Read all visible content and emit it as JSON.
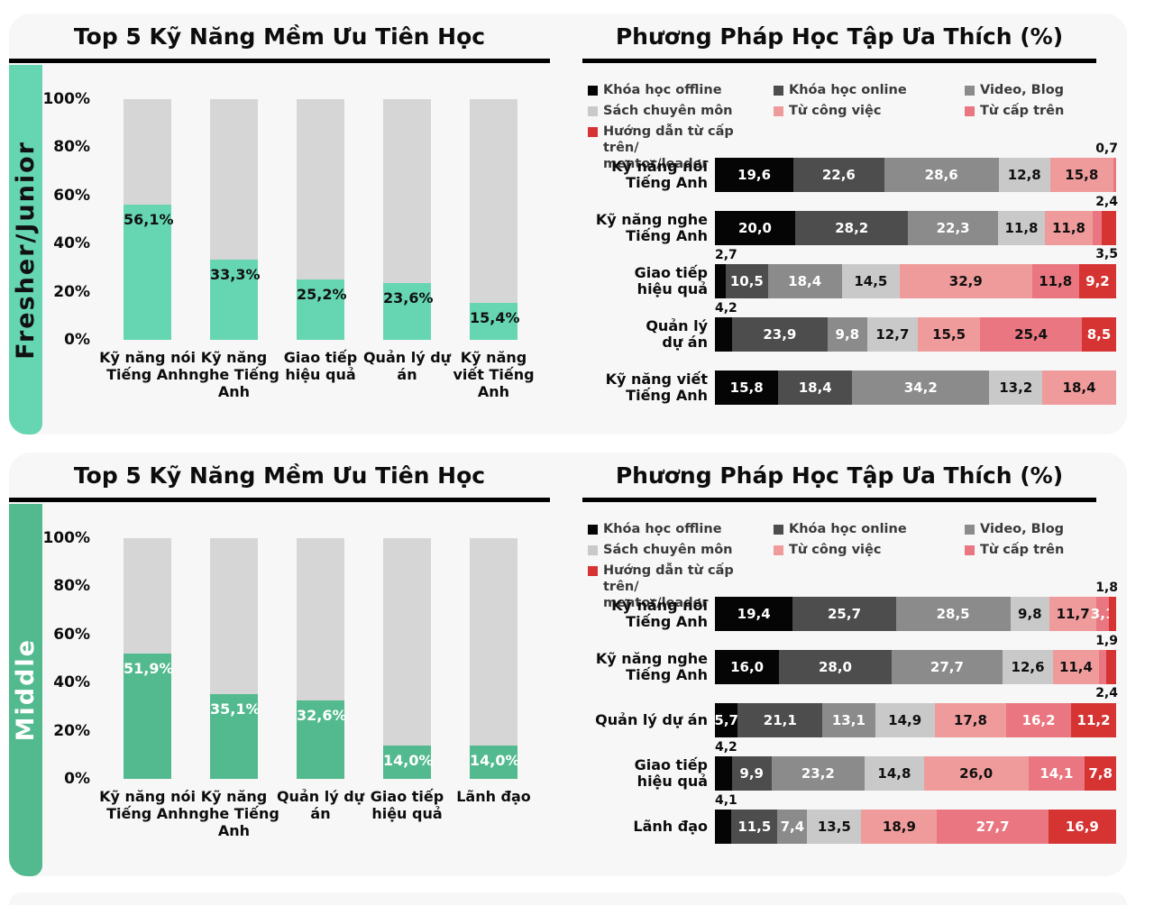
{
  "colors": {
    "teal": "#66d6b2",
    "green": "#52ba8e",
    "track_gray": "#d6d6d6",
    "card_bg": "#f7f7f8",
    "offline": "#050505",
    "online": "#4d4d4d",
    "video": "#8b8b8b",
    "sach": "#c9c9c9",
    "congviec": "#f09b9b",
    "captren": "#e97680",
    "huongdan": "#d63333"
  },
  "legend": {
    "columns": [
      [
        {
          "label": "Khóa học offline",
          "c": "offline"
        },
        {
          "label": "Sách chuyên môn",
          "c": "sach"
        },
        {
          "label": "Hướng dẫn từ cấp trên/\nmentor/leader",
          "c": "huongdan"
        }
      ],
      [
        {
          "label": "Khóa học online",
          "c": "online"
        },
        {
          "label": "Từ công việc",
          "c": "congviec"
        }
      ],
      [
        {
          "label": "Video, Blog",
          "c": "video"
        },
        {
          "label": "Từ cấp trên",
          "c": "captren"
        }
      ]
    ]
  },
  "panels": [
    {
      "side_label": "Fresher/Junior",
      "accent": "teal",
      "side_text": "#111111",
      "bar_label_color": "#111111",
      "left_title": "Top 5 Kỹ Năng Mềm Ưu Tiên Học",
      "right_title": "Phương Pháp Học Tập Ưa Thích (%)"
    },
    {
      "side_label": "Middle",
      "accent": "green",
      "side_text": "#ffffff",
      "bar_label_color": "#ffffff",
      "left_title": "Top 5 Kỹ Năng Mềm Ưu Tiên Học",
      "right_title": "Phương Pháp Học Tập Ưa Thích (%)"
    }
  ],
  "chart_data": [
    {
      "panel": "Fresher/Junior",
      "type": "bar",
      "title": "Top 5 Kỹ Năng Mềm Ưu Tiên Học",
      "ylabel": "%",
      "ylim": [
        0,
        100
      ],
      "yticks": [
        "100%",
        "80%",
        "60%",
        "40%",
        "20%",
        "0%"
      ],
      "categories": [
        "Kỹ năng nói Tiếng Anh",
        "Kỹ năng nghe Tiếng Anh",
        "Giao tiếp hiệu quả",
        "Quản lý dự án",
        "Kỹ năng viết Tiếng Anh"
      ],
      "values": [
        56.1,
        33.3,
        25.2,
        23.6,
        15.4
      ],
      "value_labels": [
        "56,1%",
        "33,3%",
        "25,2%",
        "23,6%",
        "15,4%"
      ]
    },
    {
      "panel": "Fresher/Junior",
      "type": "stacked-bar",
      "title": "Phương Pháp Học Tập Ưa Thích (%)",
      "xlim": [
        0,
        100
      ],
      "series_order": [
        "Khóa học offline",
        "Khóa học online",
        "Video, Blog",
        "Sách chuyên môn",
        "Từ công việc",
        "Từ cấp trên",
        "Hướng dẫn từ cấp trên/mentor/leader"
      ],
      "rows": [
        {
          "label": "Kỹ năng nói\nTiếng Anh",
          "segments": [
            {
              "v": 19.6,
              "t": "19,6",
              "c": "offline",
              "tc": "w",
              "pos": "in"
            },
            {
              "v": 22.6,
              "t": "22,6",
              "c": "online",
              "tc": "w",
              "pos": "in"
            },
            {
              "v": 28.6,
              "t": "28,6",
              "c": "video",
              "tc": "w",
              "pos": "in"
            },
            {
              "v": 12.8,
              "t": "12,8",
              "c": "sach",
              "tc": "b",
              "pos": "in"
            },
            {
              "v": 15.8,
              "t": "15,8",
              "c": "congviec",
              "tc": "b",
              "pos": "in"
            },
            {
              "v": 0.7,
              "t": "0,7",
              "c": "captren",
              "pos": "above"
            }
          ]
        },
        {
          "label": "Kỹ năng nghe\nTiếng Anh",
          "segments": [
            {
              "v": 20.0,
              "t": "20,0",
              "c": "offline",
              "tc": "w",
              "pos": "in"
            },
            {
              "v": 28.2,
              "t": "28,2",
              "c": "online",
              "tc": "w",
              "pos": "in"
            },
            {
              "v": 22.3,
              "t": "22,3",
              "c": "video",
              "tc": "w",
              "pos": "in"
            },
            {
              "v": 11.8,
              "t": "11,8",
              "c": "sach",
              "tc": "b",
              "pos": "in"
            },
            {
              "v": 11.8,
              "t": "11,8",
              "c": "congviec",
              "tc": "b",
              "pos": "in"
            },
            {
              "v": 2.4,
              "t": "2,4",
              "c": "captren",
              "pos": "above"
            },
            {
              "v": 3.5,
              "t": "3,5",
              "c": "huongdan",
              "pos": "below"
            }
          ]
        },
        {
          "label": "Giao tiếp\nhiệu quả",
          "segments": [
            {
              "v": 2.7,
              "t": "2,7",
              "c": "offline",
              "pos": "left-above"
            },
            {
              "v": 10.5,
              "t": "10,5",
              "c": "online",
              "tc": "w",
              "pos": "in"
            },
            {
              "v": 18.4,
              "t": "18,4",
              "c": "video",
              "tc": "w",
              "pos": "in"
            },
            {
              "v": 14.5,
              "t": "14,5",
              "c": "sach",
              "tc": "b",
              "pos": "in"
            },
            {
              "v": 32.9,
              "t": "32,9",
              "c": "congviec",
              "tc": "b",
              "pos": "in"
            },
            {
              "v": 11.8,
              "t": "11,8",
              "c": "captren",
              "tc": "b",
              "pos": "in"
            },
            {
              "v": 9.2,
              "t": "9,2",
              "c": "huongdan",
              "tc": "w",
              "pos": "in"
            }
          ]
        },
        {
          "label": "Quản lý\ndự án",
          "segments": [
            {
              "v": 4.2,
              "t": "4,2",
              "c": "offline",
              "pos": "left-above"
            },
            {
              "v": 23.9,
              "t": "23,9",
              "c": "online",
              "tc": "w",
              "pos": "in"
            },
            {
              "v": 9.8,
              "t": "9,8",
              "c": "video",
              "tc": "w",
              "pos": "in"
            },
            {
              "v": 12.7,
              "t": "12,7",
              "c": "sach",
              "tc": "b",
              "pos": "in"
            },
            {
              "v": 15.5,
              "t": "15,5",
              "c": "congviec",
              "tc": "b",
              "pos": "in"
            },
            {
              "v": 25.4,
              "t": "25,4",
              "c": "captren",
              "tc": "b",
              "pos": "in"
            },
            {
              "v": 8.5,
              "t": "8,5",
              "c": "huongdan",
              "tc": "w",
              "pos": "in"
            }
          ]
        },
        {
          "label": "Kỹ năng viết\nTiếng Anh",
          "segments": [
            {
              "v": 15.8,
              "t": "15,8",
              "c": "offline",
              "tc": "w",
              "pos": "in"
            },
            {
              "v": 18.4,
              "t": "18,4",
              "c": "online",
              "tc": "w",
              "pos": "in"
            },
            {
              "v": 34.2,
              "t": "34,2",
              "c": "video",
              "tc": "w",
              "pos": "in"
            },
            {
              "v": 13.2,
              "t": "13,2",
              "c": "sach",
              "tc": "b",
              "pos": "in"
            },
            {
              "v": 18.4,
              "t": "18,4",
              "c": "congviec",
              "tc": "b",
              "pos": "in"
            }
          ]
        }
      ]
    },
    {
      "panel": "Middle",
      "type": "bar",
      "title": "Top 5 Kỹ Năng Mềm Ưu Tiên Học",
      "ylabel": "%",
      "ylim": [
        0,
        100
      ],
      "yticks": [
        "100%",
        "80%",
        "60%",
        "40%",
        "20%",
        "0%"
      ],
      "categories": [
        "Kỹ năng nói Tiếng Anh",
        "Kỹ năng nghe Tiếng Anh",
        "Quản lý dự án",
        "Giao tiếp hiệu quả",
        "Lãnh đạo"
      ],
      "values": [
        51.9,
        35.1,
        32.6,
        14.0,
        14.0
      ],
      "value_labels": [
        "51,9%",
        "35,1%",
        "32,6%",
        "14,0%",
        "14,0%"
      ]
    },
    {
      "panel": "Middle",
      "type": "stacked-bar",
      "title": "Phương Pháp Học Tập Ưa Thích (%)",
      "xlim": [
        0,
        100
      ],
      "series_order": [
        "Khóa học offline",
        "Khóa học online",
        "Video, Blog",
        "Sách chuyên môn",
        "Từ công việc",
        "Từ cấp trên",
        "Hướng dẫn từ cấp trên/mentor/leader"
      ],
      "rows": [
        {
          "label": "Kỹ năng nói\nTiếng Anh",
          "segments": [
            {
              "v": 19.4,
              "t": "19,4",
              "c": "offline",
              "tc": "w",
              "pos": "in"
            },
            {
              "v": 25.7,
              "t": "25,7",
              "c": "online",
              "tc": "w",
              "pos": "in"
            },
            {
              "v": 28.5,
              "t": "28,5",
              "c": "video",
              "tc": "w",
              "pos": "in"
            },
            {
              "v": 9.8,
              "t": "9,8",
              "c": "sach",
              "tc": "b",
              "pos": "in"
            },
            {
              "v": 11.7,
              "t": "11,7",
              "c": "congviec",
              "tc": "b",
              "pos": "in"
            },
            {
              "v": 3.1,
              "t": "3,1",
              "c": "captren",
              "tc": "w",
              "pos": "in"
            },
            {
              "v": 1.8,
              "t": "1,8",
              "c": "huongdan",
              "pos": "above"
            }
          ]
        },
        {
          "label": "Kỹ năng nghe\nTiếng Anh",
          "segments": [
            {
              "v": 16.0,
              "t": "16,0",
              "c": "offline",
              "tc": "w",
              "pos": "in"
            },
            {
              "v": 28.0,
              "t": "28,0",
              "c": "online",
              "tc": "w",
              "pos": "in"
            },
            {
              "v": 27.7,
              "t": "27,7",
              "c": "video",
              "tc": "w",
              "pos": "in"
            },
            {
              "v": 12.6,
              "t": "12,6",
              "c": "sach",
              "tc": "b",
              "pos": "in"
            },
            {
              "v": 11.4,
              "t": "11,4",
              "c": "congviec",
              "tc": "b",
              "pos": "in"
            },
            {
              "v": 1.9,
              "t": "1,9",
              "c": "captren",
              "pos": "above"
            },
            {
              "v": 2.4,
              "t": "2,4",
              "c": "huongdan",
              "pos": "below"
            }
          ]
        },
        {
          "label": "Quản lý dự án",
          "segments": [
            {
              "v": 5.7,
              "t": "5,7",
              "c": "offline",
              "tc": "w",
              "pos": "in"
            },
            {
              "v": 21.1,
              "t": "21,1",
              "c": "online",
              "tc": "w",
              "pos": "in"
            },
            {
              "v": 13.1,
              "t": "13,1",
              "c": "video",
              "tc": "w",
              "pos": "in"
            },
            {
              "v": 14.9,
              "t": "14,9",
              "c": "sach",
              "tc": "b",
              "pos": "in"
            },
            {
              "v": 17.8,
              "t": "17,8",
              "c": "congviec",
              "tc": "b",
              "pos": "in"
            },
            {
              "v": 16.2,
              "t": "16,2",
              "c": "captren",
              "tc": "w",
              "pos": "in"
            },
            {
              "v": 11.2,
              "t": "11,2",
              "c": "huongdan",
              "tc": "w",
              "pos": "in"
            }
          ]
        },
        {
          "label": "Giao tiếp\nhiệu quả",
          "segments": [
            {
              "v": 4.2,
              "t": "4,2",
              "c": "offline",
              "pos": "left-above"
            },
            {
              "v": 9.9,
              "t": "9,9",
              "c": "online",
              "tc": "w",
              "pos": "in"
            },
            {
              "v": 23.2,
              "t": "23,2",
              "c": "video",
              "tc": "w",
              "pos": "in"
            },
            {
              "v": 14.8,
              "t": "14,8",
              "c": "sach",
              "tc": "b",
              "pos": "in"
            },
            {
              "v": 26.0,
              "t": "26,0",
              "c": "congviec",
              "tc": "b",
              "pos": "in"
            },
            {
              "v": 14.1,
              "t": "14,1",
              "c": "captren",
              "tc": "w",
              "pos": "in"
            },
            {
              "v": 7.8,
              "t": "7,8",
              "c": "huongdan",
              "tc": "w",
              "pos": "in"
            }
          ]
        },
        {
          "label": "Lãnh đạo",
          "segments": [
            {
              "v": 4.1,
              "t": "4,1",
              "c": "offline",
              "pos": "left-above"
            },
            {
              "v": 11.5,
              "t": "11,5",
              "c": "online",
              "tc": "w",
              "pos": "in"
            },
            {
              "v": 7.4,
              "t": "7,4",
              "c": "video",
              "tc": "w",
              "pos": "in"
            },
            {
              "v": 13.5,
              "t": "13,5",
              "c": "sach",
              "tc": "b",
              "pos": "in"
            },
            {
              "v": 18.9,
              "t": "18,9",
              "c": "congviec",
              "tc": "b",
              "pos": "in"
            },
            {
              "v": 27.7,
              "t": "27,7",
              "c": "captren",
              "tc": "w",
              "pos": "in"
            },
            {
              "v": 16.9,
              "t": "16,9",
              "c": "huongdan",
              "tc": "w",
              "pos": "in"
            }
          ]
        }
      ]
    }
  ]
}
